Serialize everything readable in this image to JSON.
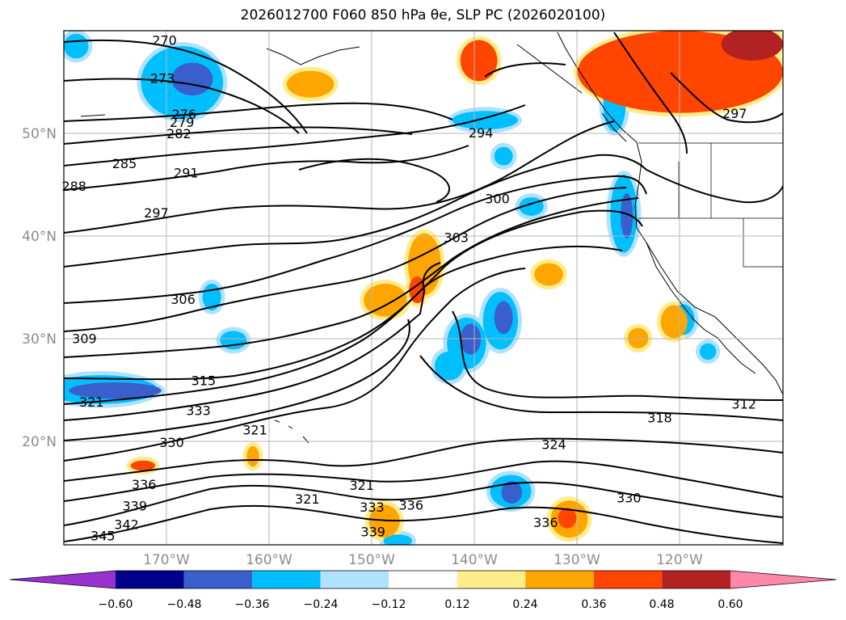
{
  "title": "2026012700 F060 850 hPa θe, SLP PC (2026020100)",
  "chart_data": {
    "type": "heatmap",
    "title": "2026012700 F060 850 hPa θe, SLP PC (2026020100)",
    "projection": "cylindrical",
    "lon_range": [
      -180,
      -110
    ],
    "lat_range": [
      10,
      60
    ],
    "grid": true,
    "lat_ticks": [
      {
        "value": 50,
        "label": "50°N"
      },
      {
        "value": 40,
        "label": "40°N"
      },
      {
        "value": 30,
        "label": "30°N"
      },
      {
        "value": 20,
        "label": "20°N"
      }
    ],
    "lon_ticks": [
      {
        "value": -170,
        "label": "170°W"
      },
      {
        "value": -160,
        "label": "160°W"
      },
      {
        "value": -150,
        "label": "150°W"
      },
      {
        "value": -140,
        "label": "140°W"
      },
      {
        "value": -130,
        "label": "130°W"
      },
      {
        "value": -120,
        "label": "120°W"
      }
    ],
    "theta_e_contour_labels": [
      {
        "text": "270",
        "lon": -170.2,
        "lat": 59.1
      },
      {
        "text": "273",
        "lon": -170.4,
        "lat": 55.4
      },
      {
        "text": "276",
        "lon": -168.3,
        "lat": 51.9
      },
      {
        "text": "279",
        "lon": -168.5,
        "lat": 51.1
      },
      {
        "text": "282",
        "lon": -168.8,
        "lat": 50.0
      },
      {
        "text": "285",
        "lon": -174.1,
        "lat": 47.1
      },
      {
        "text": "288",
        "lon": -179.0,
        "lat": 44.9
      },
      {
        "text": "291",
        "lon": -168.1,
        "lat": 46.2
      },
      {
        "text": "294",
        "lon": -139.4,
        "lat": 50.1
      },
      {
        "text": "297",
        "lon": -171.0,
        "lat": 42.3
      },
      {
        "text": "297",
        "lon": -114.7,
        "lat": 52.0
      },
      {
        "text": "300",
        "lon": -137.8,
        "lat": 43.7
      },
      {
        "text": "303",
        "lon": -141.8,
        "lat": 39.9
      },
      {
        "text": "306",
        "lon": -168.4,
        "lat": 33.9
      },
      {
        "text": "309",
        "lon": -178.0,
        "lat": 30.1
      },
      {
        "text": "312",
        "lon": -113.8,
        "lat": 23.7
      },
      {
        "text": "315",
        "lon": -166.4,
        "lat": 26.0
      },
      {
        "text": "318",
        "lon": -122.0,
        "lat": 22.4
      },
      {
        "text": "321",
        "lon": -177.3,
        "lat": 23.9
      },
      {
        "text": "321",
        "lon": -161.4,
        "lat": 21.2
      },
      {
        "text": "321",
        "lon": -151.0,
        "lat": 15.8
      },
      {
        "text": "321",
        "lon": -156.3,
        "lat": 14.5
      },
      {
        "text": "324",
        "lon": -132.3,
        "lat": 19.8
      },
      {
        "text": "330",
        "lon": -169.5,
        "lat": 20.0
      },
      {
        "text": "330",
        "lon": -125.0,
        "lat": 14.6
      },
      {
        "text": "333",
        "lon": -166.9,
        "lat": 23.1
      },
      {
        "text": "333",
        "lon": -150.0,
        "lat": 13.7
      },
      {
        "text": "336",
        "lon": -172.2,
        "lat": 15.9
      },
      {
        "text": "336",
        "lon": -146.2,
        "lat": 13.9
      },
      {
        "text": "336",
        "lon": -133.1,
        "lat": 12.2
      },
      {
        "text": "339",
        "lon": -173.1,
        "lat": 13.8
      },
      {
        "text": "339",
        "lon": -149.9,
        "lat": 11.3
      },
      {
        "text": "342",
        "lon": -173.9,
        "lat": 12.0
      },
      {
        "text": "345",
        "lon": -176.2,
        "lat": 10.9
      }
    ],
    "colorbar": {
      "ticks": [
        "−0.60",
        "−0.48",
        "−0.36",
        "−0.24",
        "−0.12",
        "0.12",
        "0.24",
        "0.36",
        "0.48",
        "0.60"
      ],
      "bins": [
        {
          "from": null,
          "to": -0.6,
          "color": "#9932CC"
        },
        {
          "from": -0.6,
          "to": -0.48,
          "color": "#00008B"
        },
        {
          "from": -0.48,
          "to": -0.36,
          "color": "#3A5FCD"
        },
        {
          "from": -0.36,
          "to": -0.24,
          "color": "#00BFFF"
        },
        {
          "from": -0.24,
          "to": -0.12,
          "color": "#B0E2FF"
        },
        {
          "from": -0.12,
          "to": 0.12,
          "color": "#FFFFFF"
        },
        {
          "from": 0.12,
          "to": 0.24,
          "color": "#FFEC8B"
        },
        {
          "from": 0.24,
          "to": 0.36,
          "color": "#FFA500"
        },
        {
          "from": 0.36,
          "to": 0.48,
          "color": "#FF4500"
        },
        {
          "from": 0.48,
          "to": 0.6,
          "color": "#B22222"
        },
        {
          "from": 0.6,
          "to": null,
          "color": "#FF88AA"
        }
      ]
    },
    "shaded_regions": [
      {
        "level": -0.36,
        "lon": -168.5,
        "lat": 55.0,
        "rlon": 4.0,
        "rlat": 3.5
      },
      {
        "level": -0.48,
        "lon": -167.5,
        "lat": 55.3,
        "rlon": 2.0,
        "rlat": 1.6
      },
      {
        "level": -0.36,
        "lon": -178.8,
        "lat": 58.5,
        "rlon": 1.2,
        "rlat": 1.2
      },
      {
        "level": -0.36,
        "lon": -176.4,
        "lat": 25.1,
        "rlon": 5.5,
        "rlat": 1.4
      },
      {
        "level": -0.48,
        "lon": -175.0,
        "lat": 25.0,
        "rlon": 4.5,
        "rlat": 0.8
      },
      {
        "level": -0.36,
        "lon": -163.5,
        "lat": 29.9,
        "rlon": 1.3,
        "rlat": 0.9
      },
      {
        "level": -0.36,
        "lon": -165.6,
        "lat": 34.1,
        "rlon": 0.9,
        "rlat": 1.3
      },
      {
        "level": -0.36,
        "lon": -137.5,
        "lat": 31.8,
        "rlon": 1.7,
        "rlat": 2.8
      },
      {
        "level": -0.48,
        "lon": -137.2,
        "lat": 32.1,
        "rlon": 0.9,
        "rlat": 1.6
      },
      {
        "level": -0.36,
        "lon": -140.8,
        "lat": 29.6,
        "rlon": 1.9,
        "rlat": 2.5
      },
      {
        "level": -0.48,
        "lon": -140.4,
        "lat": 30.0,
        "rlon": 1.0,
        "rlat": 1.5
      },
      {
        "level": -0.36,
        "lon": -142.5,
        "lat": 27.4,
        "rlon": 1.4,
        "rlat": 1.4
      },
      {
        "level": -0.36,
        "lon": -125.5,
        "lat": 42.2,
        "rlon": 1.3,
        "rlat": 3.8
      },
      {
        "level": -0.48,
        "lon": -125.2,
        "lat": 42.0,
        "rlon": 0.6,
        "rlat": 2.2
      },
      {
        "level": -0.36,
        "lon": -139.0,
        "lat": 51.3,
        "rlon": 3.2,
        "rlat": 0.9
      },
      {
        "level": -0.36,
        "lon": -126.4,
        "lat": 52.8,
        "rlon": 1.1,
        "rlat": 2.6
      },
      {
        "level": -0.36,
        "lon": -134.5,
        "lat": 42.9,
        "rlon": 1.2,
        "rlat": 0.9
      },
      {
        "level": -0.36,
        "lon": -137.2,
        "lat": 47.8,
        "rlon": 0.9,
        "rlat": 0.9
      },
      {
        "level": -0.36,
        "lon": -119.7,
        "lat": 31.9,
        "rlon": 1.1,
        "rlat": 1.5
      },
      {
        "level": -0.36,
        "lon": -117.3,
        "lat": 28.8,
        "rlon": 0.8,
        "rlat": 0.8
      },
      {
        "level": -0.36,
        "lon": -136.5,
        "lat": 15.2,
        "rlon": 2.0,
        "rlat": 1.6
      },
      {
        "level": -0.48,
        "lon": -136.4,
        "lat": 15.1,
        "rlon": 1.0,
        "rlat": 1.1
      },
      {
        "level": -0.36,
        "lon": -147.5,
        "lat": 10.4,
        "rlon": 1.4,
        "rlat": 0.6
      },
      {
        "level": 0.36,
        "lon": -120.0,
        "lat": 56.0,
        "rlon": 10.0,
        "rlat": 4.0
      },
      {
        "level": 0.48,
        "lon": -113.0,
        "lat": 58.7,
        "rlon": 3.0,
        "rlat": 1.6
      },
      {
        "level": 0.24,
        "lon": -156.0,
        "lat": 54.8,
        "rlon": 2.3,
        "rlat": 1.3
      },
      {
        "level": 0.36,
        "lon": -139.6,
        "lat": 57.1,
        "rlon": 1.8,
        "rlat": 2.0
      },
      {
        "level": 0.24,
        "lon": -144.9,
        "lat": 37.3,
        "rlon": 1.6,
        "rlat": 3.0
      },
      {
        "level": 0.36,
        "lon": -145.6,
        "lat": 34.8,
        "rlon": 0.8,
        "rlat": 1.3
      },
      {
        "level": 0.24,
        "lon": -148.7,
        "lat": 33.8,
        "rlon": 2.1,
        "rlat": 1.6
      },
      {
        "level": 0.24,
        "lon": -132.8,
        "lat": 36.3,
        "rlon": 1.4,
        "rlat": 1.1
      },
      {
        "level": 0.24,
        "lon": -120.6,
        "lat": 31.7,
        "rlon": 1.3,
        "rlat": 1.6
      },
      {
        "level": 0.24,
        "lon": -130.8,
        "lat": 12.5,
        "rlon": 1.8,
        "rlat": 1.8
      },
      {
        "level": 0.36,
        "lon": -131.0,
        "lat": 12.6,
        "rlon": 0.9,
        "rlat": 1.0
      },
      {
        "level": 0.24,
        "lon": -148.8,
        "lat": 12.3,
        "rlon": 1.5,
        "rlat": 1.6
      },
      {
        "level": 0.24,
        "lon": -124.1,
        "lat": 30.1,
        "rlon": 1.0,
        "rlat": 1.0
      },
      {
        "level": 0.36,
        "lon": -172.3,
        "lat": 17.7,
        "rlon": 1.2,
        "rlat": 0.5
      },
      {
        "level": 0.24,
        "lon": -161.6,
        "lat": 18.6,
        "rlon": 0.6,
        "rlat": 1.0
      }
    ]
  }
}
